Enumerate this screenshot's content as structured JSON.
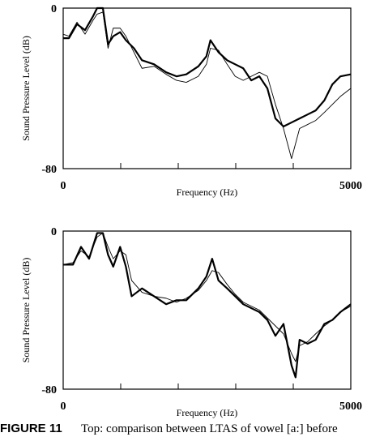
{
  "chart_data": [
    {
      "type": "line",
      "xlabel": "Frequency (Hz)",
      "ylabel": "Sound Pressure Level (dB)",
      "xlim": [
        0,
        5000
      ],
      "ylim": [
        -80,
        0
      ],
      "xticks": [
        0,
        5000
      ],
      "yticks": [
        -80,
        0
      ],
      "xticks_minor": [
        1000,
        2000,
        3000,
        4000
      ],
      "x": [
        0,
        100,
        240,
        380,
        520,
        590,
        690,
        780,
        870,
        990,
        1090,
        1230,
        1370,
        1580,
        1790,
        1970,
        2140,
        2350,
        2490,
        2560,
        2700,
        2850,
        2990,
        3130,
        3270,
        3410,
        3550,
        3690,
        3830,
        3970,
        4110,
        4250,
        4390,
        4540,
        4680,
        4820,
        5000
      ],
      "series": [
        {
          "color": "#000000",
          "line_width": 2.2,
          "values": [
            -15,
            -15,
            -8,
            -11,
            -4,
            0,
            0,
            -18,
            -14,
            -12,
            -16,
            -20,
            -26,
            -28,
            -32,
            -34,
            -33,
            -29,
            -24,
            -16,
            -22,
            -26,
            -28,
            -30,
            -36,
            -34,
            -40,
            -55,
            -59,
            -57,
            -55,
            -53,
            -51,
            -46,
            -38,
            -34,
            -33
          ]
        },
        {
          "color": "#000000",
          "line_width": 0.9,
          "values": [
            -13,
            -14,
            -7,
            -13,
            -6,
            -3,
            -2,
            -20,
            -10,
            -10,
            -14,
            -22,
            -30,
            -29,
            -33,
            -36,
            -37,
            -34,
            -28,
            -20,
            -21,
            -28,
            -34,
            -36,
            -34,
            -32,
            -34,
            -48,
            -60,
            -75,
            -60,
            -58,
            -56,
            -52,
            -48,
            -44,
            -40
          ]
        }
      ]
    },
    {
      "type": "line",
      "xlabel": "Frequency (Hz)",
      "ylabel": "Sound Pressure Level (dB)",
      "xlim": [
        0,
        5000
      ],
      "ylim": [
        -80,
        0
      ],
      "xticks": [
        0,
        5000
      ],
      "yticks": [
        -80,
        0
      ],
      "xticks_minor": [
        1000,
        2000,
        3000,
        4000
      ],
      "x": [
        0,
        170,
        310,
        450,
        590,
        690,
        780,
        870,
        990,
        1090,
        1190,
        1370,
        1580,
        1790,
        1970,
        2140,
        2350,
        2490,
        2590,
        2700,
        2850,
        2990,
        3130,
        3270,
        3410,
        3550,
        3690,
        3830,
        3970,
        4040,
        4110,
        4250,
        4390,
        4540,
        4680,
        4820,
        5000
      ],
      "series": [
        {
          "color": "#000000",
          "line_width": 2.2,
          "values": [
            -17,
            -17,
            -8,
            -14,
            -1,
            -1,
            -12,
            -18,
            -8,
            -18,
            -33,
            -29,
            -33,
            -37,
            -35,
            -35,
            -29,
            -23,
            -14,
            -25,
            -29,
            -33,
            -37,
            -39,
            -41,
            -45,
            -53,
            -47,
            -68,
            -74,
            -55,
            -57,
            -55,
            -47,
            -45,
            -41,
            -37
          ]
        },
        {
          "color": "#000000",
          "line_width": 0.9,
          "values": [
            -17,
            -16,
            -10,
            -13,
            -3,
            -1,
            -8,
            -14,
            -10,
            -12,
            -25,
            -31,
            -33,
            -34,
            -36,
            -34,
            -30,
            -25,
            -20,
            -21,
            -27,
            -32,
            -36,
            -38,
            -40,
            -44,
            -48,
            -52,
            -62,
            -66,
            -58,
            -56,
            -52,
            -48,
            -45,
            -41,
            -38
          ]
        }
      ]
    }
  ],
  "caption": {
    "label": "FIGURE 11",
    "text": "Top: comparison between LTAS of vowel [a:] before"
  }
}
